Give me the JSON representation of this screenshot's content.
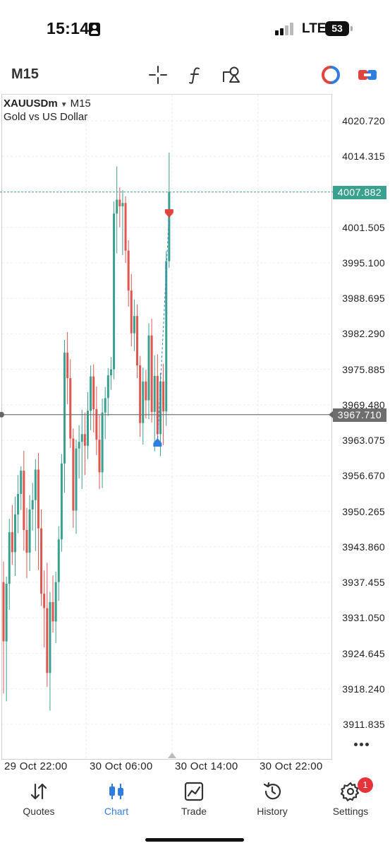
{
  "status_bar": {
    "time": "15:14",
    "network": "LTE",
    "battery": "53"
  },
  "toolbar": {
    "timeframe": "M15",
    "icons": [
      "crosshair-icon",
      "indicator-f-icon",
      "objects-icon",
      "one-click-trading-icon",
      "trade-toggle-icon"
    ]
  },
  "chart": {
    "symbol": "XAUUSDm",
    "symbol_timeframe": "M15",
    "description": "Gold vs US Dollar",
    "price_axis": [
      "4020.720",
      "4014.315",
      "4001.505",
      "3995.100",
      "3988.695",
      "3982.290",
      "3975.885",
      "3969.480",
      "3963.075",
      "3956.670",
      "3950.265",
      "3943.860",
      "3937.455",
      "3931.050",
      "3924.645",
      "3918.240",
      "3911.835"
    ],
    "bid_price": "4007.882",
    "line_price": "3967.710",
    "time_axis": [
      "29 Oct 22:00",
      "30 Oct 06:00",
      "30 Oct 14:00",
      "30 Oct 22:00"
    ],
    "colors": {
      "bull": "#3aa08f",
      "bear": "#e0564f",
      "bid_tag": "#3aa08f",
      "line_tag": "#6e6e6e",
      "sell_arrow": "#e0453d",
      "buy_arrow": "#2f7de1"
    }
  },
  "chart_data": {
    "type": "candlestick",
    "y_unit": "price",
    "ylim": [
      3905.0,
      4027.0
    ],
    "candles": [
      {
        "o": 3937.5,
        "h": 3941.2,
        "l": 3917.4,
        "c": 3926.8
      },
      {
        "o": 3926.8,
        "h": 3938.5,
        "l": 3916.0,
        "c": 3937.2
      },
      {
        "o": 3937.2,
        "h": 3948.9,
        "l": 3932.5,
        "c": 3946.5
      },
      {
        "o": 3946.5,
        "h": 3951.4,
        "l": 3940.6,
        "c": 3942.9
      },
      {
        "o": 3942.9,
        "h": 3952.9,
        "l": 3938.6,
        "c": 3949.7
      },
      {
        "o": 3949.7,
        "h": 3956.8,
        "l": 3946.3,
        "c": 3953.4
      },
      {
        "o": 3953.4,
        "h": 3958.4,
        "l": 3950.5,
        "c": 3957.6
      },
      {
        "o": 3957.6,
        "h": 3961.2,
        "l": 3943.2,
        "c": 3946.9
      },
      {
        "o": 3946.9,
        "h": 3950.9,
        "l": 3938.2,
        "c": 3942.8
      },
      {
        "o": 3942.8,
        "h": 3953.2,
        "l": 3939.5,
        "c": 3950.6
      },
      {
        "o": 3950.6,
        "h": 3955.4,
        "l": 3946.8,
        "c": 3952.3
      },
      {
        "o": 3952.3,
        "h": 3959.7,
        "l": 3943.1,
        "c": 3957.8
      },
      {
        "o": 3957.8,
        "h": 3960.8,
        "l": 3939.7,
        "c": 3947.2
      },
      {
        "o": 3947.2,
        "h": 3950.6,
        "l": 3933.2,
        "c": 3935.4
      },
      {
        "o": 3935.4,
        "h": 3939.6,
        "l": 3925.7,
        "c": 3932.8
      },
      {
        "o": 3932.8,
        "h": 3941.0,
        "l": 3918.6,
        "c": 3921.1
      },
      {
        "o": 3921.1,
        "h": 3935.7,
        "l": 3914.3,
        "c": 3933.9
      },
      {
        "o": 3933.9,
        "h": 3938.7,
        "l": 3928.4,
        "c": 3930.4
      },
      {
        "o": 3930.4,
        "h": 3939.4,
        "l": 3926.5,
        "c": 3937.5
      },
      {
        "o": 3937.5,
        "h": 3947.6,
        "l": 3934.1,
        "c": 3945.2
      },
      {
        "o": 3945.2,
        "h": 3960.6,
        "l": 3943.0,
        "c": 3958.9
      },
      {
        "o": 3958.9,
        "h": 3981.2,
        "l": 3953.6,
        "c": 3978.9
      },
      {
        "o": 3978.9,
        "h": 3982.6,
        "l": 3969.6,
        "c": 3974.3
      },
      {
        "o": 3974.3,
        "h": 3977.7,
        "l": 3961.7,
        "c": 3963.4
      },
      {
        "o": 3963.4,
        "h": 3965.2,
        "l": 3947.3,
        "c": 3950.4
      },
      {
        "o": 3950.4,
        "h": 3963.2,
        "l": 3946.2,
        "c": 3961.6
      },
      {
        "o": 3961.6,
        "h": 3965.8,
        "l": 3956.2,
        "c": 3962.8
      },
      {
        "o": 3962.8,
        "h": 3968.6,
        "l": 3954.3,
        "c": 3964.2
      },
      {
        "o": 3964.2,
        "h": 3968.1,
        "l": 3956.8,
        "c": 3962.1
      },
      {
        "o": 3962.1,
        "h": 3971.8,
        "l": 3959.7,
        "c": 3968.4
      },
      {
        "o": 3968.4,
        "h": 3976.6,
        "l": 3964.9,
        "c": 3974.6
      },
      {
        "o": 3974.6,
        "h": 3976.8,
        "l": 3964.5,
        "c": 3968.7
      },
      {
        "o": 3968.7,
        "h": 3972.8,
        "l": 3960.4,
        "c": 3963.2
      },
      {
        "o": 3963.2,
        "h": 3967.6,
        "l": 3954.3,
        "c": 3957.3
      },
      {
        "o": 3957.3,
        "h": 3970.6,
        "l": 3954.5,
        "c": 3968.1
      },
      {
        "o": 3968.1,
        "h": 3972.7,
        "l": 3963.3,
        "c": 3970.7
      },
      {
        "o": 3970.7,
        "h": 3976.1,
        "l": 3967.5,
        "c": 3974.8
      },
      {
        "o": 3974.8,
        "h": 3978.1,
        "l": 3972.2,
        "c": 3975.9
      },
      {
        "o": 3975.9,
        "h": 4006.2,
        "l": 3974.1,
        "c": 4004.0
      },
      {
        "o": 4004.0,
        "h": 4012.5,
        "l": 3996.8,
        "c": 4006.5
      },
      {
        "o": 4006.5,
        "h": 4008.7,
        "l": 4001.5,
        "c": 4005.3
      },
      {
        "o": 4005.3,
        "h": 4008.2,
        "l": 3996.5,
        "c": 4005.9
      },
      {
        "o": 4005.9,
        "h": 4007.1,
        "l": 3995.1,
        "c": 3997.3
      },
      {
        "o": 3997.3,
        "h": 3999.2,
        "l": 3987.2,
        "c": 3990.1
      },
      {
        "o": 3990.1,
        "h": 3993.1,
        "l": 3980.0,
        "c": 3982.4
      },
      {
        "o": 3982.4,
        "h": 3988.5,
        "l": 3979.2,
        "c": 3985.5
      },
      {
        "o": 3985.5,
        "h": 3987.6,
        "l": 3974.3,
        "c": 3976.6
      },
      {
        "o": 3976.6,
        "h": 3978.3,
        "l": 3963.7,
        "c": 3966.2
      },
      {
        "o": 3966.2,
        "h": 3976.2,
        "l": 3962.3,
        "c": 3973.7
      },
      {
        "o": 3973.7,
        "h": 3975.8,
        "l": 3967.0,
        "c": 3970.3
      },
      {
        "o": 3970.3,
        "h": 3984.2,
        "l": 3966.9,
        "c": 3982.0
      },
      {
        "o": 3982.0,
        "h": 3985.0,
        "l": 3966.3,
        "c": 3968.2
      },
      {
        "o": 3968.2,
        "h": 3978.4,
        "l": 3961.1,
        "c": 3974.7
      },
      {
        "o": 3974.7,
        "h": 3978.6,
        "l": 3962.8,
        "c": 3964.2
      },
      {
        "o": 3964.2,
        "h": 3975.2,
        "l": 3960.2,
        "c": 3973.7
      },
      {
        "o": 3973.7,
        "h": 3976.9,
        "l": 3962.2,
        "c": 3968.3
      },
      {
        "o": 3968.3,
        "h": 3997.2,
        "l": 3965.7,
        "c": 3995.4
      },
      {
        "o": 3995.4,
        "h": 4015.0,
        "l": 3994.2,
        "c": 4007.9
      }
    ],
    "markers": [
      {
        "type": "sell",
        "price": 4004.0
      },
      {
        "type": "buy",
        "price": 3962.7
      }
    ]
  },
  "nav": {
    "items": [
      {
        "label": "Quotes",
        "icon": "quotes-arrows-icon"
      },
      {
        "label": "Chart",
        "icon": "chart-candles-icon"
      },
      {
        "label": "Trade",
        "icon": "trade-chart-icon"
      },
      {
        "label": "History",
        "icon": "history-clock-icon"
      },
      {
        "label": "Settings",
        "icon": "settings-gear-icon"
      }
    ],
    "settings_badge": "1"
  }
}
